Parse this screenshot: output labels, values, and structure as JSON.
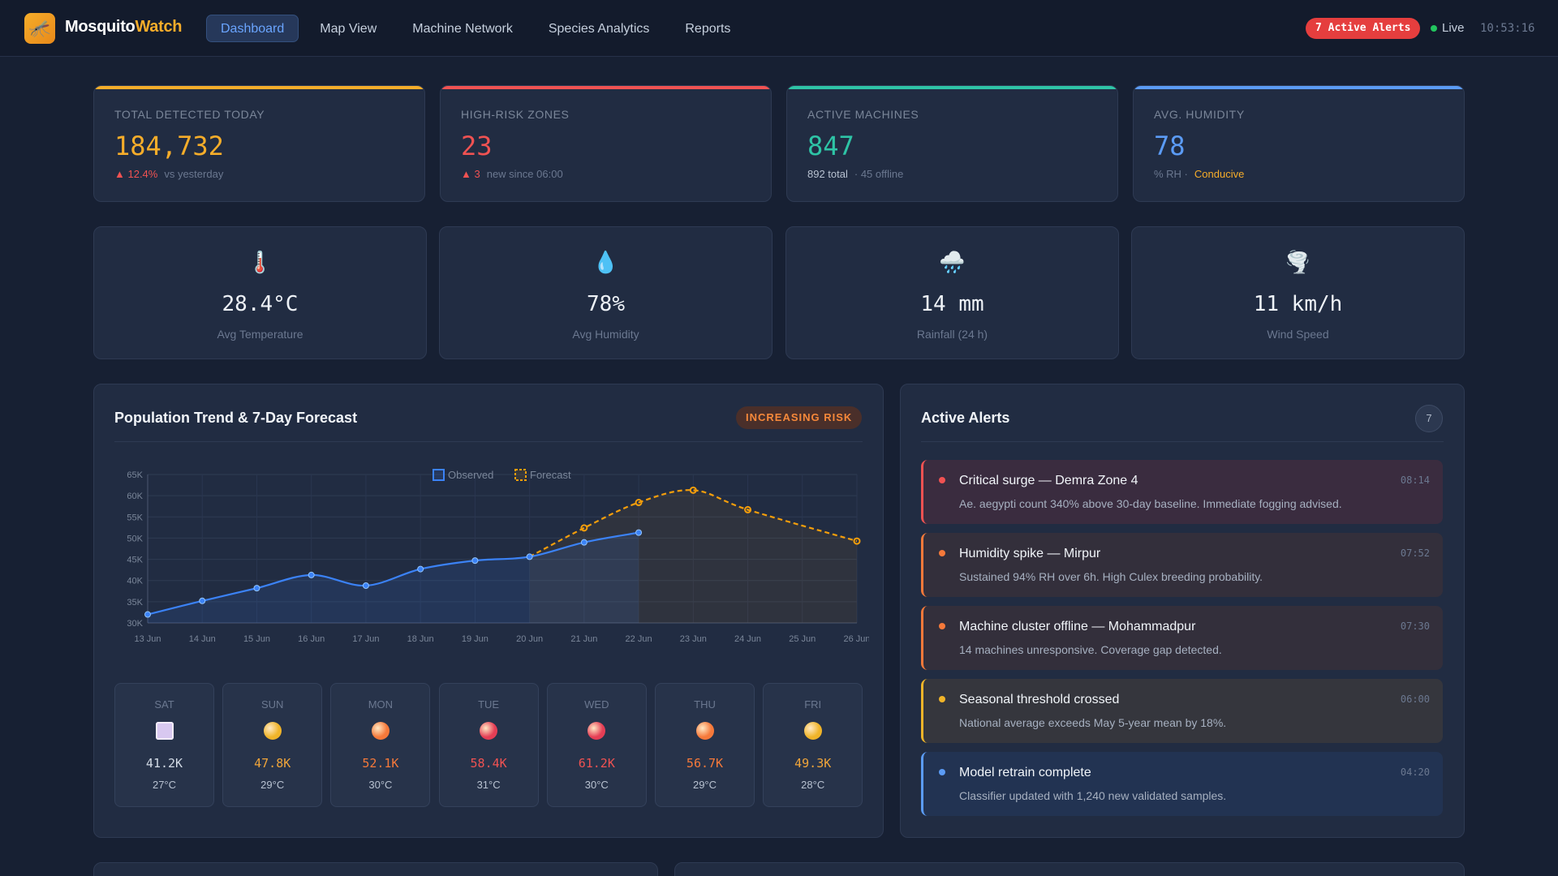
{
  "app": {
    "logo_icon": "🦟",
    "brand_part1": "Mosquito",
    "brand_part2": "Watch"
  },
  "nav": [
    {
      "label": "Dashboard",
      "active": true
    },
    {
      "label": "Map View"
    },
    {
      "label": "Machine Network"
    },
    {
      "label": "Species Analytics"
    },
    {
      "label": "Reports"
    }
  ],
  "header": {
    "alerts_pill": "7 Active Alerts",
    "live_label": "Live",
    "clock": "10:53:16"
  },
  "kpis": [
    {
      "label": "Total Detected Today",
      "value": "184,732",
      "color": "#f6ad2a",
      "sub_a": "▲ 12.4%",
      "sub_a_color": "#f05252",
      "sub_b": "vs yesterday"
    },
    {
      "label": "High-Risk Zones",
      "value": "23",
      "color": "#f05252",
      "sub_a": "▲ 3",
      "sub_a_color": "#f05252",
      "sub_b": "new since 06:00"
    },
    {
      "label": "Active Machines",
      "value": "847",
      "color": "#2ec4a6",
      "sub_a": "892 total",
      "sub_a_color": "#b8c2d1",
      "sub_b": "· 45 offline"
    },
    {
      "label": "Avg. Humidity",
      "value": "78",
      "color": "#5b9bf5",
      "sub_a": "% RH ·",
      "sub_a_color": "#6b7890",
      "sub_b": "Conducive",
      "sub_b_color": "#f6ad2a"
    }
  ],
  "weather": [
    {
      "icon": "🌡️",
      "value": "28.4°C",
      "label": "Avg Temperature"
    },
    {
      "icon": "💧",
      "value": "78%",
      "label": "Avg Humidity"
    },
    {
      "icon": "🌧️",
      "value": "14 mm",
      "label": "Rainfall (24 h)"
    },
    {
      "icon": "🌪️",
      "value": "11 km/h",
      "label": "Wind Speed"
    }
  ],
  "trend": {
    "title": "Population Trend & 7-Day Forecast",
    "risk_badge": "INCREASING RISK"
  },
  "chart_data": {
    "type": "line",
    "x": [
      "13 Jun",
      "14 Jun",
      "15 Jun",
      "16 Jun",
      "17 Jun",
      "18 Jun",
      "19 Jun",
      "20 Jun",
      "21 Jun",
      "22 Jun",
      "23 Jun",
      "24 Jun",
      "25 Jun",
      "26 Jun"
    ],
    "ylim": [
      30000,
      65000
    ],
    "y_ticks": [
      "30K",
      "35K",
      "40K",
      "45K",
      "50K",
      "55K",
      "60K",
      "65K"
    ],
    "legend": [
      "Observed",
      "Forecast"
    ],
    "series": [
      {
        "name": "Observed",
        "color": "#3b82f6",
        "values": [
          32000,
          35200,
          38200,
          41300,
          38800,
          42700,
          44700,
          45600,
          49000,
          51300,
          null,
          null,
          null,
          null
        ]
      },
      {
        "name": "Forecast",
        "color": "#f59e0b",
        "values": [
          null,
          null,
          null,
          null,
          null,
          null,
          null,
          45600,
          52400,
          58400,
          61300,
          56700,
          null,
          49300
        ]
      }
    ]
  },
  "forecast_days": [
    {
      "day": "SAT",
      "value": "41.2K",
      "temp": "27°C",
      "icon_color": "#d8c8f0",
      "square": true,
      "value_color": "#d3dbe6"
    },
    {
      "day": "SUN",
      "value": "47.8K",
      "temp": "29°C",
      "icon_color": "#f0b429",
      "value_color": "#f0a53a"
    },
    {
      "day": "MON",
      "value": "52.1K",
      "temp": "30°C",
      "icon_color": "#f6793a",
      "value_color": "#f6793a"
    },
    {
      "day": "TUE",
      "value": "58.4K",
      "temp": "31°C",
      "icon_color": "#e53e55",
      "value_color": "#f05252"
    },
    {
      "day": "WED",
      "value": "61.2K",
      "temp": "30°C",
      "icon_color": "#e53e55",
      "value_color": "#f05252"
    },
    {
      "day": "THU",
      "value": "56.7K",
      "temp": "29°C",
      "icon_color": "#f6793a",
      "value_color": "#f6793a"
    },
    {
      "day": "FRI",
      "value": "49.3K",
      "temp": "28°C",
      "icon_color": "#f0b429",
      "value_color": "#f0a53a"
    }
  ],
  "alerts_panel": {
    "title": "Active Alerts",
    "count": "7",
    "items": [
      {
        "title": "Critical surge — Demra Zone 4",
        "desc": "Ae. aegypti count 340% above 30-day baseline. Immediate fogging advised.",
        "time": "08:14",
        "color": "#f05252",
        "bg": "#3a2c3f"
      },
      {
        "title": "Humidity spike — Mirpur",
        "desc": "Sustained 94% RH over 6h. High Culex breeding probability.",
        "time": "07:52",
        "color": "#f6793a",
        "bg": "#332f3b"
      },
      {
        "title": "Machine cluster offline — Mohammadpur",
        "desc": "14 machines unresponsive. Coverage gap detected.",
        "time": "07:30",
        "color": "#f6793a",
        "bg": "#332f3b"
      },
      {
        "title": "Seasonal threshold crossed",
        "desc": "National average exceeds May 5-year mean by 18%.",
        "time": "06:00",
        "color": "#f0b429",
        "bg": "#35363d"
      },
      {
        "title": "Model retrain complete",
        "desc": "Classifier updated with 1,240 new validated samples.",
        "time": "04:20",
        "color": "#5b9bf5",
        "bg": "#223352"
      }
    ]
  }
}
